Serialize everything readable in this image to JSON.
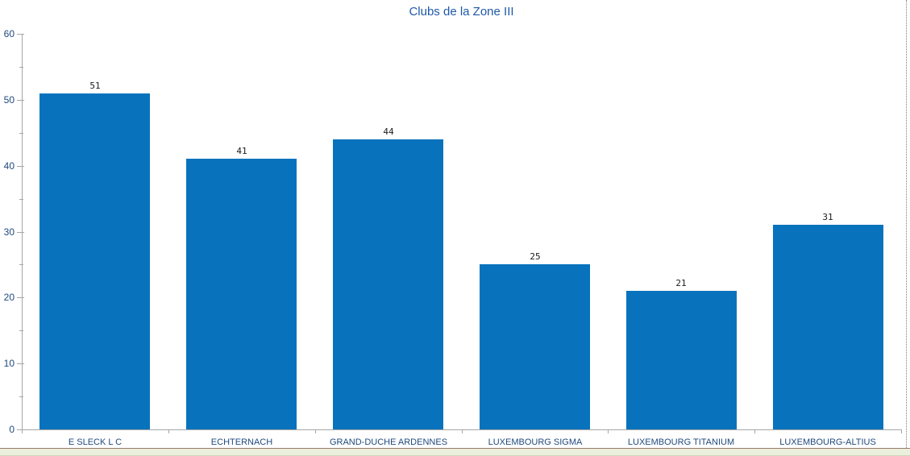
{
  "chart_data": {
    "type": "bar",
    "title": "Clubs de la Zone III",
    "categories": [
      "E SLECK L C",
      "ECHTERNACH",
      "GRAND-DUCHE ARDENNES",
      "LUXEMBOURG SIGMA",
      "LUXEMBOURG TITANIUM",
      "LUXEMBOURG-ALTIUS"
    ],
    "values": [
      51,
      41,
      44,
      25,
      21,
      31
    ],
    "data_labels": [
      "51",
      "41",
      "44",
      "25",
      "21",
      "31"
    ],
    "xlabel": "",
    "ylabel": "",
    "ylim": [
      0,
      60
    ],
    "yticks": [
      0,
      10,
      20,
      30,
      40,
      50,
      60
    ],
    "ytick_minor_step": 5,
    "grid": false,
    "legend": false,
    "layout_hints": {
      "bar_gap": "bars separated, single series",
      "data_labels_position": "outside-end",
      "page_break_dotted_line": "vertical, near right edge",
      "worksheet_row_visible_below_chart": true
    },
    "colors": {
      "bar_fill": "#0873BC",
      "title_text": "#1F58A8",
      "axis_text": "#1F497D",
      "data_label_text": "#1A1A1A",
      "axis_line": "#A6A6A6",
      "page_break_line": "#7F7F7F",
      "worksheet_strip_fill": "#EAF0DC",
      "worksheet_strip_border": "#9C7A6D"
    }
  }
}
